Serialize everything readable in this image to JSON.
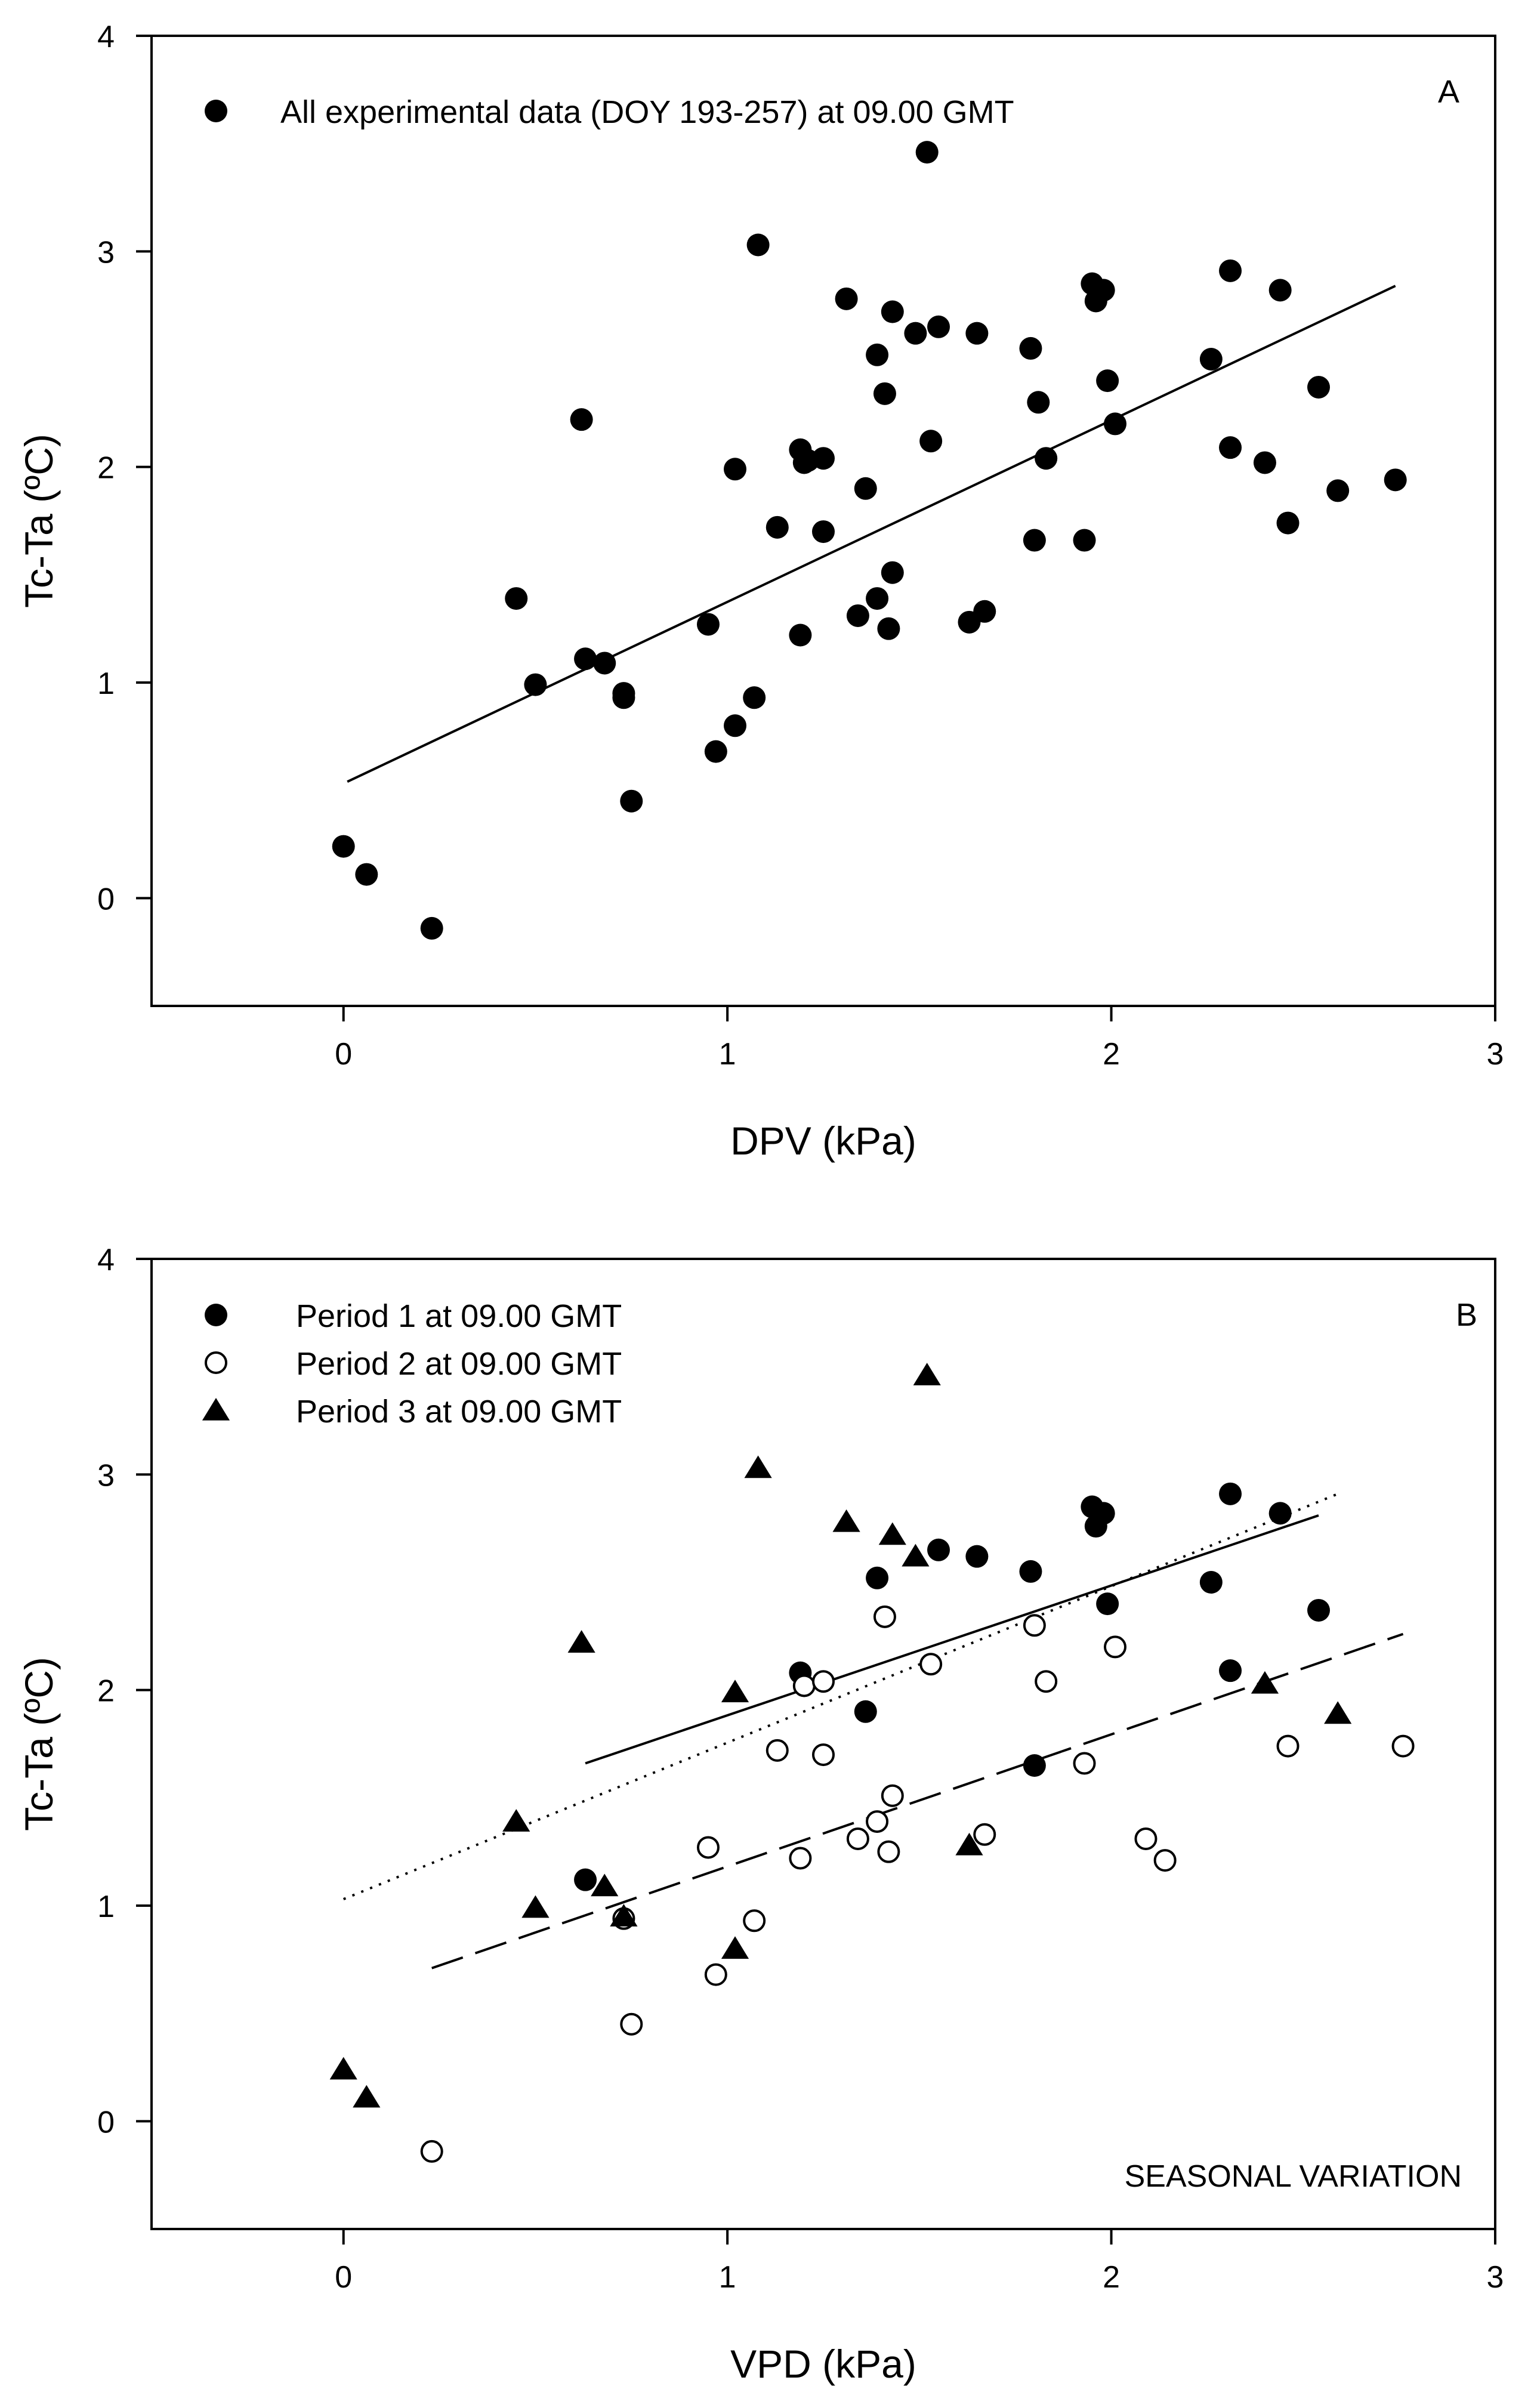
{
  "chart_data": [
    {
      "type": "scatter",
      "panel": "A",
      "xlabel": "DPV (kPa)",
      "ylabel": "Tc-Ta (ºC)",
      "xlim": [
        -0.5,
        3
      ],
      "ylim": [
        -0.5,
        4
      ],
      "xticks": [
        0,
        1,
        2,
        3
      ],
      "yticks": [
        0,
        1,
        2,
        3,
        4
      ],
      "legend_position": "top-left",
      "annotation": "",
      "series": [
        {
          "name": "All experimental data (DOY 193-257) at 09.00 GMT",
          "marker": "filled-circle",
          "points": [
            [
              0.0,
              0.24
            ],
            [
              0.06,
              0.11
            ],
            [
              0.23,
              -0.14
            ],
            [
              0.45,
              1.39
            ],
            [
              0.5,
              0.99
            ],
            [
              0.62,
              2.22
            ],
            [
              0.63,
              1.11
            ],
            [
              0.68,
              1.09
            ],
            [
              0.73,
              0.95
            ],
            [
              0.73,
              0.93
            ],
            [
              0.75,
              0.45
            ],
            [
              0.95,
              1.27
            ],
            [
              0.97,
              0.68
            ],
            [
              1.02,
              0.8
            ],
            [
              1.02,
              1.99
            ],
            [
              1.07,
              0.93
            ],
            [
              1.08,
              3.03
            ],
            [
              1.13,
              1.72
            ],
            [
              1.19,
              2.08
            ],
            [
              1.2,
              2.02
            ],
            [
              1.21,
              2.03
            ],
            [
              1.19,
              1.22
            ],
            [
              1.25,
              2.04
            ],
            [
              1.25,
              1.7
            ],
            [
              1.31,
              2.78
            ],
            [
              1.34,
              1.31
            ],
            [
              1.36,
              1.9
            ],
            [
              1.39,
              1.39
            ],
            [
              1.39,
              2.52
            ],
            [
              1.41,
              2.34
            ],
            [
              1.42,
              1.25
            ],
            [
              1.43,
              1.51
            ],
            [
              1.43,
              2.72
            ],
            [
              1.49,
              2.62
            ],
            [
              1.52,
              3.46
            ],
            [
              1.53,
              2.12
            ],
            [
              1.55,
              2.65
            ],
            [
              1.63,
              1.28
            ],
            [
              1.65,
              2.62
            ],
            [
              1.67,
              1.33
            ],
            [
              1.79,
              2.55
            ],
            [
              1.81,
              2.3
            ],
            [
              1.8,
              1.66
            ],
            [
              1.83,
              2.04
            ],
            [
              1.93,
              1.66
            ],
            [
              1.95,
              2.85
            ],
            [
              1.96,
              2.77
            ],
            [
              1.98,
              2.82
            ],
            [
              1.99,
              2.4
            ],
            [
              2.01,
              2.2
            ],
            [
              2.26,
              2.5
            ],
            [
              2.31,
              2.91
            ],
            [
              2.31,
              2.09
            ],
            [
              2.4,
              2.02
            ],
            [
              2.44,
              2.82
            ],
            [
              2.46,
              1.74
            ],
            [
              2.54,
              2.37
            ],
            [
              2.59,
              1.89
            ],
            [
              2.74,
              1.94
            ]
          ]
        }
      ],
      "fits": [
        {
          "name": "regression",
          "style": "solid",
          "x": [
            0.01,
            2.74
          ],
          "y": [
            0.54,
            2.84
          ]
        }
      ]
    },
    {
      "type": "scatter",
      "panel": "B",
      "xlabel": "VPD (kPa)",
      "ylabel": "Tc-Ta (ºC)",
      "xlim": [
        -0.5,
        3
      ],
      "ylim": [
        -0.5,
        4
      ],
      "xticks": [
        0,
        1,
        2,
        3
      ],
      "yticks": [
        0,
        1,
        2,
        3,
        4
      ],
      "legend_position": "top-left",
      "annotation": "SEASONAL VARIATION",
      "series": [
        {
          "name": "Period 1 at 09.00 GMT",
          "marker": "filled-circle",
          "points": [
            [
              0.63,
              1.12
            ],
            [
              1.19,
              2.08
            ],
            [
              1.36,
              1.9
            ],
            [
              1.39,
              2.52
            ],
            [
              1.55,
              2.65
            ],
            [
              1.65,
              2.62
            ],
            [
              1.79,
              2.55
            ],
            [
              1.8,
              1.65
            ],
            [
              1.95,
              2.85
            ],
            [
              1.96,
              2.76
            ],
            [
              1.98,
              2.82
            ],
            [
              1.99,
              2.4
            ],
            [
              2.26,
              2.5
            ],
            [
              2.31,
              2.91
            ],
            [
              2.31,
              2.09
            ],
            [
              2.44,
              2.82
            ],
            [
              2.54,
              2.37
            ]
          ]
        },
        {
          "name": "Period 2 at 09.00 GMT",
          "marker": "open-circle",
          "points": [
            [
              0.23,
              -0.14
            ],
            [
              0.73,
              0.94
            ],
            [
              0.75,
              0.45
            ],
            [
              0.95,
              1.27
            ],
            [
              0.97,
              0.68
            ],
            [
              1.07,
              0.93
            ],
            [
              1.13,
              1.72
            ],
            [
              1.19,
              1.22
            ],
            [
              1.2,
              2.02
            ],
            [
              1.25,
              2.04
            ],
            [
              1.25,
              1.7
            ],
            [
              1.34,
              1.31
            ],
            [
              1.39,
              1.39
            ],
            [
              1.41,
              2.34
            ],
            [
              1.42,
              1.25
            ],
            [
              1.43,
              1.51
            ],
            [
              1.53,
              2.12
            ],
            [
              1.67,
              1.33
            ],
            [
              1.8,
              2.3
            ],
            [
              1.83,
              2.04
            ],
            [
              1.93,
              1.66
            ],
            [
              2.01,
              2.2
            ],
            [
              2.09,
              1.31
            ],
            [
              2.14,
              1.21
            ],
            [
              2.46,
              1.74
            ],
            [
              2.76,
              1.74
            ]
          ]
        },
        {
          "name": "Period 3 at 09.00 GMT",
          "marker": "filled-triangle",
          "points": [
            [
              0.0,
              0.24
            ],
            [
              0.06,
              0.11
            ],
            [
              0.45,
              1.39
            ],
            [
              0.5,
              0.99
            ],
            [
              0.62,
              2.22
            ],
            [
              0.68,
              1.09
            ],
            [
              0.73,
              0.95
            ],
            [
              1.02,
              0.8
            ],
            [
              1.02,
              1.99
            ],
            [
              1.08,
              3.03
            ],
            [
              1.31,
              2.78
            ],
            [
              1.43,
              2.72
            ],
            [
              1.49,
              2.62
            ],
            [
              1.52,
              3.46
            ],
            [
              1.63,
              1.28
            ],
            [
              2.4,
              2.03
            ],
            [
              2.59,
              1.89
            ]
          ]
        }
      ],
      "fits": [
        {
          "name": "Period 1 fit",
          "style": "solid",
          "x": [
            0.63,
            2.54
          ],
          "y": [
            1.66,
            2.81
          ]
        },
        {
          "name": "Period 2 fit",
          "style": "dashed",
          "x": [
            0.23,
            2.76
          ],
          "y": [
            0.71,
            2.26
          ]
        },
        {
          "name": "Period 3 fit",
          "style": "dotted",
          "x": [
            0.0,
            2.59
          ],
          "y": [
            1.03,
            2.91
          ]
        }
      ]
    }
  ]
}
